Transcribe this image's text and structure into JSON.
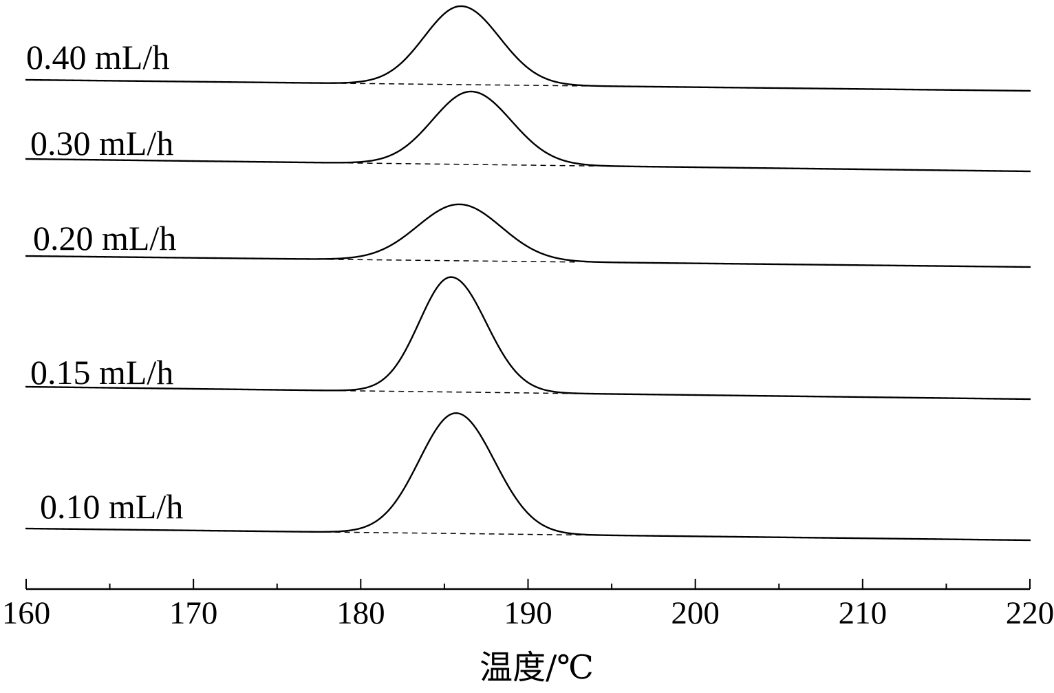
{
  "chart_data": {
    "type": "line",
    "xlabel": "温度/℃",
    "ylabel": "",
    "xlim": [
      160,
      220
    ],
    "x_ticks": [
      160,
      170,
      180,
      190,
      200,
      210,
      220
    ],
    "x_minor_ticks": [
      165,
      175,
      185,
      195,
      205,
      215
    ],
    "y_axis_visible": false,
    "grid": false,
    "legend": "inline",
    "series": [
      {
        "name": "0.40 mL/h",
        "peak_x": 186.0,
        "peak_height": 1.14,
        "sigma_left": 2.2,
        "sigma_right": 2.3,
        "base_start": 0.0,
        "base_end": -0.16,
        "onset_x": 176.5,
        "endset_x": 193.5
      },
      {
        "name": "0.30 mL/h",
        "peak_x": 186.6,
        "peak_height": 1.06,
        "sigma_left": 2.3,
        "sigma_right": 2.4,
        "base_start": 0.0,
        "base_end": -0.18,
        "onset_x": 177.5,
        "endset_x": 194.0
      },
      {
        "name": "0.20 mL/h",
        "peak_x": 185.9,
        "peak_height": 0.82,
        "sigma_left": 2.5,
        "sigma_right": 2.5,
        "base_start": 0.0,
        "base_end": -0.16,
        "onset_x": 177.5,
        "endset_x": 193.0
      },
      {
        "name": "0.15 mL/h",
        "peak_x": 185.4,
        "peak_height": 1.67,
        "sigma_left": 1.9,
        "sigma_right": 2.1,
        "base_start": 0.0,
        "base_end": -0.18,
        "onset_x": 176.5,
        "endset_x": 193.0
      },
      {
        "name": "0.10 mL/h",
        "peak_x": 185.7,
        "peak_height": 1.75,
        "sigma_left": 2.2,
        "sigma_right": 2.3,
        "base_start": 0.0,
        "base_end": -0.17,
        "onset_x": 175.0,
        "endset_x": 194.0
      }
    ]
  }
}
